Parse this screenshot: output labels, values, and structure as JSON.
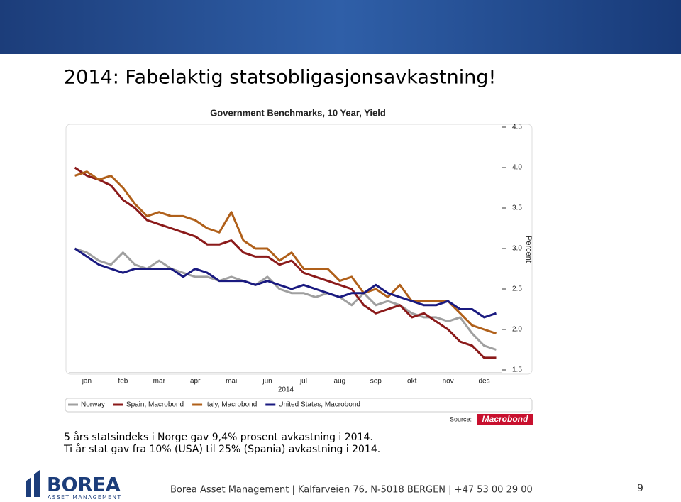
{
  "slide": {
    "title": "2014: Fabelaktig statsobligasjonsavkastning!",
    "body": [
      "5 års statsindeks i Norge gav 9,4% prosent avkastning i 2014.",
      "Ti år stat gav fra 10% (USA) til 25% (Spania) avkastning i 2014."
    ],
    "footer": "Borea Asset Management | Kalfarveien 76, N-5018 BERGEN | +47 53 00 29 00",
    "page_number": "9",
    "logo": {
      "name": "BOREA",
      "tagline": "ASSET MANAGEMENT"
    }
  },
  "chart_data": {
    "type": "line",
    "title": "Government Benchmarks, 10 Year, Yield",
    "xlabel": "2014",
    "ylabel": "Percent",
    "source_label": "Source:",
    "source": "Macrobond",
    "categories": [
      null,
      "jan",
      null,
      null,
      "feb",
      null,
      null,
      "mar",
      null,
      null,
      "apr",
      null,
      null,
      "mai",
      null,
      null,
      "jun",
      null,
      null,
      "jul",
      null,
      null,
      "aug",
      null,
      null,
      "sep",
      null,
      null,
      "okt",
      null,
      null,
      "nov",
      null,
      null,
      "des",
      null
    ],
    "ylim": [
      1.5,
      4.5
    ],
    "yticks": [
      1.5,
      {
        "value": 2,
        "label": "2.0"
      },
      2.5,
      {
        "value": 3,
        "label": "3.0"
      },
      3.5,
      {
        "value": 4,
        "label": "4.0"
      },
      4.5
    ],
    "legend": "bottom",
    "series": [
      {
        "name": "Norway",
        "color": "#a0a0a0",
        "values": [
          3.0,
          2.95,
          2.85,
          2.8,
          2.95,
          2.8,
          2.75,
          2.85,
          2.75,
          2.7,
          2.65,
          2.65,
          2.6,
          2.65,
          2.6,
          2.55,
          2.65,
          2.5,
          2.45,
          2.45,
          2.4,
          2.45,
          2.4,
          2.3,
          2.45,
          2.3,
          2.35,
          2.3,
          2.2,
          2.15,
          2.15,
          2.1,
          2.15,
          1.95,
          1.8,
          1.75
        ]
      },
      {
        "name": "Spain, Macrobond",
        "color": "#8b1a1a",
        "values": [
          4.0,
          3.9,
          3.85,
          3.78,
          3.6,
          3.5,
          3.35,
          3.3,
          3.25,
          3.2,
          3.15,
          3.05,
          3.05,
          3.1,
          2.95,
          2.9,
          2.9,
          2.8,
          2.85,
          2.7,
          2.65,
          2.6,
          2.55,
          2.5,
          2.3,
          2.2,
          2.25,
          2.3,
          2.15,
          2.2,
          2.1,
          2.0,
          1.85,
          1.8,
          1.65,
          1.65
        ]
      },
      {
        "name": "Italy, Macrobond",
        "color": "#b0601a",
        "values": [
          3.9,
          3.95,
          3.85,
          3.9,
          3.75,
          3.55,
          3.4,
          3.45,
          3.4,
          3.4,
          3.35,
          3.25,
          3.2,
          3.45,
          3.1,
          3.0,
          3.0,
          2.85,
          2.95,
          2.75,
          2.75,
          2.75,
          2.6,
          2.65,
          2.45,
          2.5,
          2.4,
          2.55,
          2.35,
          2.35,
          2.35,
          2.35,
          2.2,
          2.05,
          2.0,
          1.95
        ]
      },
      {
        "name": "United States, Macrobond",
        "color": "#1a1a80",
        "values": [
          3.0,
          2.9,
          2.8,
          2.75,
          2.7,
          2.75,
          2.75,
          2.75,
          2.75,
          2.65,
          2.75,
          2.7,
          2.6,
          2.6,
          2.6,
          2.55,
          2.6,
          2.55,
          2.5,
          2.55,
          2.5,
          2.45,
          2.4,
          2.45,
          2.45,
          2.55,
          2.45,
          2.4,
          2.35,
          2.3,
          2.3,
          2.35,
          2.25,
          2.25,
          2.15,
          2.2
        ]
      }
    ]
  }
}
